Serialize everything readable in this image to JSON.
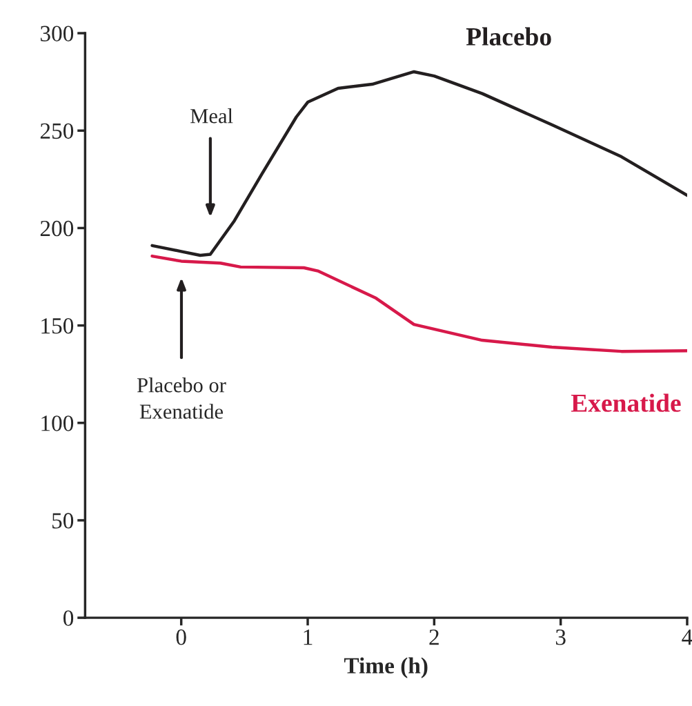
{
  "chart_data": {
    "type": "line",
    "xlabel": "Time (h)",
    "xlim": [
      -0.76,
      4
    ],
    "xticks": [
      0,
      1,
      2,
      3,
      4
    ],
    "ylim": [
      0,
      300
    ],
    "yticks": [
      0,
      50,
      100,
      150,
      200,
      250,
      300
    ],
    "grid": false,
    "legend": false,
    "marker": "none",
    "line_style": "solid",
    "series": [
      {
        "name": "Placebo",
        "color": "#231f20",
        "x": [
          -0.23,
          0,
          0.15,
          0.23,
          0.42,
          0.64,
          0.91,
          1,
          1.24,
          1.51,
          1.84,
          2,
          2.38,
          2.93,
          3.48,
          4
        ],
        "values": [
          191,
          188,
          186,
          186.5,
          203.7,
          228,
          257,
          264.6,
          271.7,
          273.8,
          280.2,
          278,
          269,
          253,
          236.6,
          216.8
        ]
      },
      {
        "name": "Exenatide",
        "color": "#d7194a",
        "x": [
          -0.23,
          0,
          0.31,
          0.47,
          0.97,
          1.08,
          1.54,
          1.84,
          2.38,
          2.93,
          3.48,
          4
        ],
        "values": [
          185.6,
          183,
          182,
          180,
          179.6,
          178,
          164,
          150.5,
          142.4,
          138.9,
          136.7,
          137
        ]
      }
    ],
    "annotations": [
      "Meal",
      "Placebo or\nExenatide"
    ]
  }
}
